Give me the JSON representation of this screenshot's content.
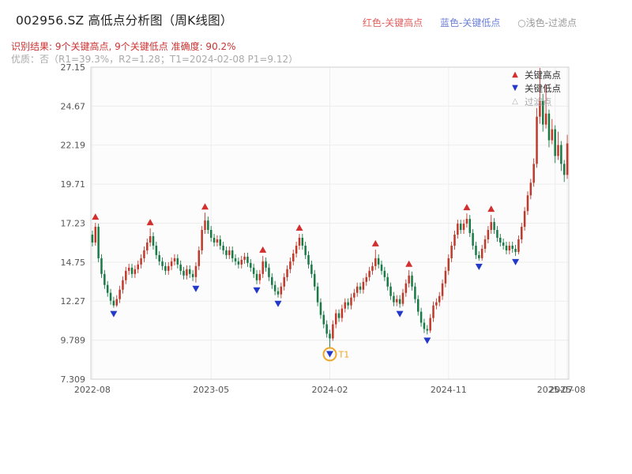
{
  "header": {
    "title": "002956.SZ 高低点分析图（周K线图）",
    "legend_top": [
      {
        "label": "红色-关键高点",
        "color": "#e06060"
      },
      {
        "label": "蓝色-关键低点",
        "color": "#6b7fd7"
      },
      {
        "label": "○浅色-过滤点",
        "color": "#9a9a9a"
      }
    ],
    "result_line": "识别结果: 9个关键高点, 9个关键低点  准确度: 90.2%",
    "result_color": "#cc3333",
    "quality_line": "优质：否（R1=39.3%，R2=1.28；T1=2024-02-08 P1=9.12）",
    "quality_color": "#aaaaaa"
  },
  "legend_box": {
    "items": [
      {
        "label": "关键高点",
        "glyph": "▲",
        "color": "#d32f2f",
        "text_color": "#333333"
      },
      {
        "label": "关键低点",
        "glyph": "▼",
        "color": "#2138c8",
        "text_color": "#333333"
      },
      {
        "label": "过滤点",
        "glyph": "△",
        "color": "#b0b0b0",
        "text_color": "#aaaaaa"
      }
    ]
  },
  "chart_data": {
    "type": "candlestick",
    "title": "002956.SZ 高低点分析图（周K线图）",
    "xlabel": "",
    "ylabel": "",
    "grid": true,
    "y_range": [
      7.309,
      27.15
    ],
    "y_ticks": [
      "27.15",
      "24.67",
      "22.19",
      "19.71",
      "17.23",
      "14.75",
      "12.27",
      "9.789",
      "7.309"
    ],
    "x_ticks": [
      {
        "label": "2022-08",
        "week": 0
      },
      {
        "label": "2023-05",
        "week": 39
      },
      {
        "label": "2024-02",
        "week": 78
      },
      {
        "label": "2024-11",
        "week": 117
      },
      {
        "label": "2025-07",
        "week": 152
      },
      {
        "label": "2025-08",
        "week": 156
      }
    ],
    "up_color": "#c0392b",
    "down_color": "#1a7a46",
    "high_marker_color": "#d32f2f",
    "low_marker_color": "#2138c8",
    "key_high_weeks": [
      1,
      19,
      37,
      56,
      68,
      93,
      104,
      123,
      131
    ],
    "key_low_weeks": [
      7,
      34,
      54,
      61,
      78,
      101,
      110,
      127,
      139
    ],
    "annotation": {
      "label": "T1",
      "week": 78,
      "color": "#eda62a"
    },
    "candles": [
      [
        16.5,
        16.75,
        15.75,
        16.0
      ],
      [
        16.0,
        17.25,
        15.8,
        17.0
      ],
      [
        17.0,
        17.2,
        14.75,
        15.0
      ],
      [
        15.0,
        15.25,
        13.75,
        14.0
      ],
      [
        14.0,
        14.25,
        13.05,
        13.3
      ],
      [
        13.3,
        13.55,
        12.55,
        12.8
      ],
      [
        12.8,
        13.05,
        12.05,
        12.3
      ],
      [
        12.3,
        12.55,
        11.85,
        12.0
      ],
      [
        12.0,
        12.65,
        11.9,
        12.4
      ],
      [
        12.4,
        13.25,
        12.15,
        13.0
      ],
      [
        13.0,
        13.85,
        12.75,
        13.6
      ],
      [
        13.6,
        14.45,
        13.35,
        14.2
      ],
      [
        14.2,
        14.65,
        13.95,
        14.4
      ],
      [
        14.4,
        14.65,
        13.75,
        14.0
      ],
      [
        14.0,
        14.55,
        13.75,
        14.3
      ],
      [
        14.3,
        14.85,
        14.05,
        14.6
      ],
      [
        14.6,
        15.25,
        14.35,
        15.0
      ],
      [
        15.0,
        15.75,
        14.75,
        15.5
      ],
      [
        15.5,
        16.25,
        15.25,
        16.0
      ],
      [
        16.0,
        16.9,
        15.75,
        16.4
      ],
      [
        16.4,
        16.65,
        15.55,
        15.8
      ],
      [
        15.8,
        16.05,
        14.95,
        15.2
      ],
      [
        15.2,
        15.45,
        14.55,
        14.8
      ],
      [
        14.8,
        15.05,
        14.25,
        14.5
      ],
      [
        14.5,
        14.75,
        13.95,
        14.2
      ],
      [
        14.2,
        14.75,
        13.95,
        14.5
      ],
      [
        14.5,
        15.05,
        14.25,
        14.8
      ],
      [
        14.8,
        15.25,
        14.55,
        15.0
      ],
      [
        15.0,
        15.25,
        14.35,
        14.6
      ],
      [
        14.6,
        14.85,
        13.95,
        14.2
      ],
      [
        14.2,
        14.45,
        13.65,
        13.9
      ],
      [
        13.9,
        14.55,
        13.65,
        14.3
      ],
      [
        14.3,
        14.55,
        13.75,
        14.0
      ],
      [
        14.0,
        14.25,
        13.55,
        13.8
      ],
      [
        13.8,
        14.75,
        13.45,
        14.5
      ],
      [
        14.5,
        15.75,
        14.25,
        15.5
      ],
      [
        15.5,
        17.05,
        15.25,
        16.8
      ],
      [
        16.8,
        17.9,
        16.55,
        17.4
      ],
      [
        17.4,
        17.65,
        16.55,
        16.8
      ],
      [
        16.8,
        17.05,
        16.05,
        16.3
      ],
      [
        16.3,
        16.55,
        15.75,
        16.0
      ],
      [
        16.0,
        16.45,
        15.75,
        16.2
      ],
      [
        16.2,
        16.45,
        15.55,
        15.8
      ],
      [
        15.8,
        16.05,
        15.25,
        15.5
      ],
      [
        15.5,
        15.75,
        14.95,
        15.2
      ],
      [
        15.2,
        15.75,
        14.95,
        15.5
      ],
      [
        15.5,
        15.75,
        14.75,
        15.0
      ],
      [
        15.0,
        15.25,
        14.55,
        14.8
      ],
      [
        14.8,
        15.05,
        14.35,
        14.6
      ],
      [
        14.6,
        15.15,
        14.35,
        14.9
      ],
      [
        14.9,
        15.35,
        14.65,
        15.1
      ],
      [
        15.1,
        15.35,
        14.45,
        14.7
      ],
      [
        14.7,
        14.95,
        14.15,
        14.4
      ],
      [
        14.4,
        14.65,
        13.75,
        14.0
      ],
      [
        14.0,
        14.25,
        13.35,
        13.6
      ],
      [
        13.6,
        14.25,
        13.35,
        14.0
      ],
      [
        14.0,
        15.15,
        13.75,
        14.8
      ],
      [
        14.8,
        15.05,
        14.15,
        14.4
      ],
      [
        14.4,
        14.65,
        13.55,
        13.8
      ],
      [
        13.8,
        14.05,
        13.05,
        13.3
      ],
      [
        13.3,
        13.55,
        12.65,
        12.9
      ],
      [
        12.9,
        13.15,
        12.5,
        12.7
      ],
      [
        12.7,
        13.45,
        12.45,
        13.2
      ],
      [
        13.2,
        14.05,
        12.95,
        13.8
      ],
      [
        13.8,
        14.55,
        13.55,
        14.3
      ],
      [
        14.3,
        15.05,
        14.05,
        14.8
      ],
      [
        14.8,
        15.55,
        14.55,
        15.3
      ],
      [
        15.3,
        16.05,
        15.05,
        15.8
      ],
      [
        15.8,
        16.55,
        15.55,
        16.3
      ],
      [
        16.3,
        16.55,
        15.55,
        15.8
      ],
      [
        15.8,
        16.05,
        14.95,
        15.2
      ],
      [
        15.2,
        15.45,
        14.35,
        14.6
      ],
      [
        14.6,
        14.85,
        13.75,
        14.0
      ],
      [
        14.0,
        14.25,
        12.95,
        13.2
      ],
      [
        13.2,
        13.45,
        11.95,
        12.2
      ],
      [
        12.2,
        12.45,
        11.15,
        11.4
      ],
      [
        11.4,
        11.65,
        10.55,
        10.8
      ],
      [
        10.8,
        11.05,
        9.95,
        10.2
      ],
      [
        10.2,
        10.45,
        9.3,
        9.9
      ],
      [
        9.9,
        11.05,
        9.75,
        10.8
      ],
      [
        10.8,
        11.75,
        10.55,
        11.5
      ],
      [
        11.5,
        11.75,
        10.95,
        11.2
      ],
      [
        11.2,
        12.05,
        10.95,
        11.8
      ],
      [
        11.8,
        12.45,
        11.55,
        12.2
      ],
      [
        12.2,
        12.45,
        11.75,
        12.0
      ],
      [
        12.0,
        12.75,
        11.75,
        12.5
      ],
      [
        12.5,
        13.05,
        12.25,
        12.8
      ],
      [
        12.8,
        13.45,
        12.55,
        13.2
      ],
      [
        13.2,
        13.45,
        12.75,
        13.0
      ],
      [
        13.0,
        13.75,
        12.75,
        13.5
      ],
      [
        13.5,
        14.05,
        13.25,
        13.8
      ],
      [
        13.8,
        14.45,
        13.55,
        14.2
      ],
      [
        14.2,
        14.75,
        13.95,
        14.5
      ],
      [
        14.5,
        15.55,
        14.25,
        15.0
      ],
      [
        15.0,
        15.25,
        14.35,
        14.6
      ],
      [
        14.6,
        14.85,
        13.95,
        14.2
      ],
      [
        14.2,
        14.45,
        13.55,
        13.8
      ],
      [
        13.8,
        14.05,
        12.95,
        13.2
      ],
      [
        13.2,
        13.45,
        12.35,
        12.6
      ],
      [
        12.6,
        12.85,
        11.95,
        12.2
      ],
      [
        12.2,
        12.65,
        11.95,
        12.4
      ],
      [
        12.4,
        12.65,
        11.85,
        12.1
      ],
      [
        12.1,
        13.05,
        11.95,
        12.8
      ],
      [
        12.8,
        13.65,
        12.55,
        13.4
      ],
      [
        13.4,
        14.25,
        13.15,
        13.9
      ],
      [
        13.9,
        14.15,
        12.95,
        13.2
      ],
      [
        13.2,
        13.45,
        12.15,
        12.4
      ],
      [
        12.4,
        12.65,
        11.35,
        11.6
      ],
      [
        11.6,
        11.85,
        10.65,
        10.9
      ],
      [
        10.9,
        11.15,
        10.25,
        10.5
      ],
      [
        10.5,
        10.75,
        10.15,
        10.4
      ],
      [
        10.4,
        11.45,
        10.25,
        11.2
      ],
      [
        11.2,
        12.25,
        10.95,
        12.0
      ],
      [
        12.0,
        12.45,
        11.75,
        12.2
      ],
      [
        12.2,
        12.85,
        11.95,
        12.6
      ],
      [
        12.6,
        13.65,
        12.35,
        13.4
      ],
      [
        13.4,
        14.45,
        13.15,
        14.2
      ],
      [
        14.2,
        15.25,
        13.95,
        15.0
      ],
      [
        15.0,
        16.05,
        14.75,
        15.8
      ],
      [
        15.8,
        16.75,
        15.55,
        16.5
      ],
      [
        16.5,
        17.45,
        16.25,
        17.2
      ],
      [
        17.2,
        17.45,
        16.55,
        16.8
      ],
      [
        16.8,
        17.45,
        16.55,
        17.2
      ],
      [
        17.2,
        17.85,
        16.95,
        17.5
      ],
      [
        17.5,
        17.75,
        16.35,
        16.6
      ],
      [
        16.6,
        16.85,
        15.55,
        15.8
      ],
      [
        15.8,
        16.05,
        14.95,
        15.2
      ],
      [
        15.2,
        15.45,
        14.85,
        15.0
      ],
      [
        15.0,
        15.85,
        14.85,
        15.6
      ],
      [
        15.6,
        16.45,
        15.35,
        16.2
      ],
      [
        16.2,
        17.05,
        15.95,
        16.8
      ],
      [
        16.8,
        17.75,
        16.55,
        17.3
      ],
      [
        17.3,
        17.55,
        16.55,
        16.8
      ],
      [
        16.8,
        17.05,
        16.05,
        16.3
      ],
      [
        16.3,
        16.55,
        15.75,
        16.0
      ],
      [
        16.0,
        16.25,
        15.55,
        15.8
      ],
      [
        15.8,
        16.05,
        15.25,
        15.5
      ],
      [
        15.5,
        16.05,
        15.25,
        15.8
      ],
      [
        15.8,
        16.05,
        15.35,
        15.6
      ],
      [
        15.6,
        15.85,
        15.15,
        15.4
      ],
      [
        15.4,
        16.45,
        15.25,
        16.2
      ],
      [
        16.2,
        17.25,
        15.95,
        17.0
      ],
      [
        17.0,
        18.25,
        16.75,
        18.0
      ],
      [
        18.0,
        19.25,
        17.75,
        19.0
      ],
      [
        19.0,
        20.05,
        18.75,
        19.8
      ],
      [
        19.8,
        21.35,
        19.55,
        21.0
      ],
      [
        21.0,
        24.55,
        20.75,
        24.0
      ],
      [
        24.0,
        27.1,
        23.55,
        25.0
      ],
      [
        25.0,
        25.45,
        23.05,
        23.5
      ],
      [
        23.5,
        26.05,
        23.25,
        24.2
      ],
      [
        24.2,
        24.45,
        22.05,
        22.5
      ],
      [
        22.5,
        23.85,
        22.25,
        23.2
      ],
      [
        23.2,
        23.45,
        21.05,
        21.5
      ],
      [
        21.5,
        23.05,
        21.25,
        22.2
      ],
      [
        22.2,
        22.45,
        20.55,
        21.0
      ],
      [
        21.0,
        21.25,
        19.85,
        20.3
      ],
      [
        20.3,
        22.85,
        20.05,
        22.3
      ]
    ]
  }
}
